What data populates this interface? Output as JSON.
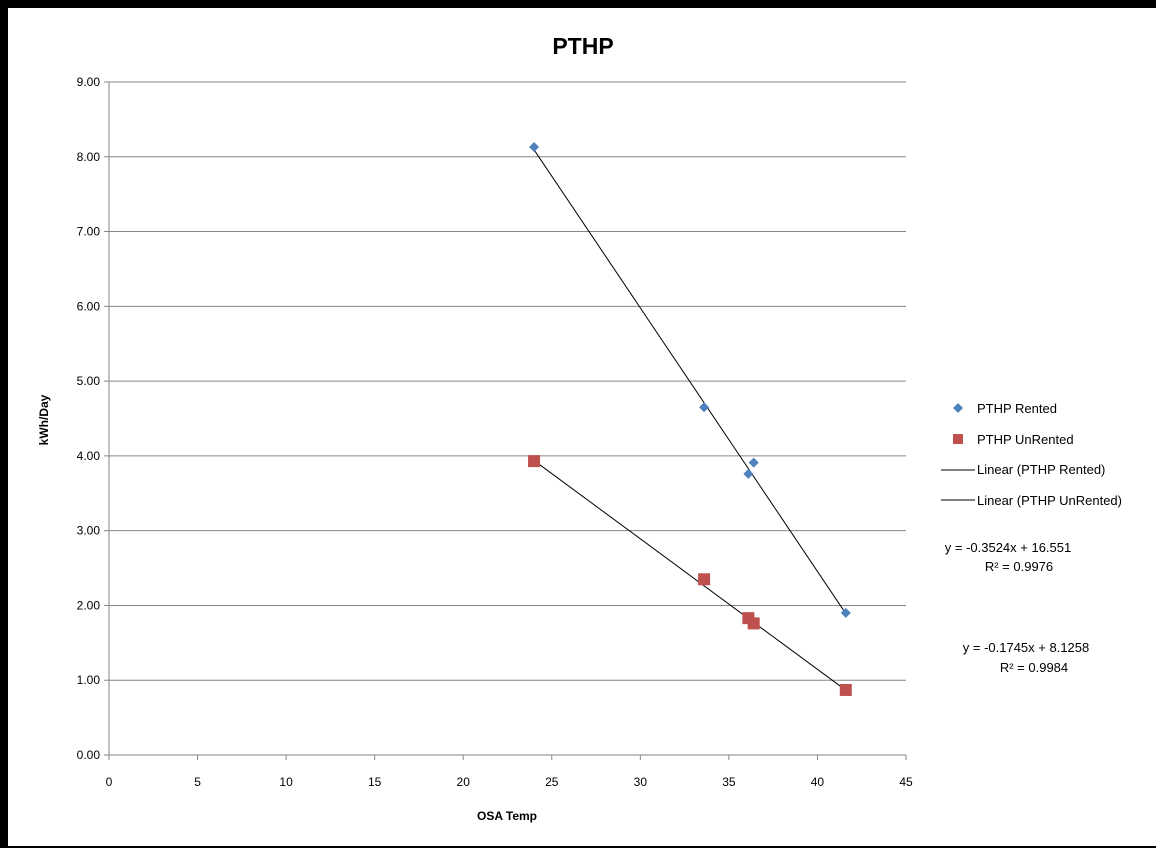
{
  "chart_data": {
    "type": "scatter",
    "title": "PTHP",
    "xlabel": "OSA Temp",
    "ylabel": "kWh/Day",
    "xlim": [
      0,
      45
    ],
    "ylim": [
      0,
      9
    ],
    "x_ticks": [
      "0",
      "5",
      "10",
      "15",
      "20",
      "25",
      "30",
      "35",
      "40",
      "45"
    ],
    "y_ticks": [
      "0.00",
      "1.00",
      "2.00",
      "3.00",
      "4.00",
      "5.00",
      "6.00",
      "7.00",
      "8.00",
      "9.00"
    ],
    "grid": "horizontal",
    "legend_position": "right",
    "series": [
      {
        "name": "PTHP Rented",
        "marker": "diamond",
        "color": "#4F81BD",
        "points": [
          [
            24,
            8.13
          ],
          [
            33.6,
            4.65
          ],
          [
            36.1,
            3.76
          ],
          [
            36.4,
            3.91
          ],
          [
            41.6,
            1.9
          ]
        ]
      },
      {
        "name": "PTHP UnRented",
        "marker": "square",
        "color": "#C0504D",
        "points": [
          [
            24,
            3.93
          ],
          [
            33.6,
            2.35
          ],
          [
            36.1,
            1.83
          ],
          [
            36.4,
            1.76
          ],
          [
            41.6,
            0.87
          ]
        ]
      }
    ],
    "trendlines": [
      {
        "name": "Linear (PTHP Rented)",
        "slope": -0.3524,
        "intercept": 16.551,
        "x_range": [
          24,
          41.6
        ],
        "color": "#000000",
        "equation": "y = -0.3524x + 16.551",
        "r2_label": "R² = 0.9976"
      },
      {
        "name": "Linear (PTHP UnRented)",
        "slope": -0.1745,
        "intercept": 8.1258,
        "x_range": [
          24,
          41.6
        ],
        "color": "#000000",
        "equation": "y = -0.1745x + 8.1258",
        "r2_label": "R² = 0.9984"
      }
    ]
  }
}
